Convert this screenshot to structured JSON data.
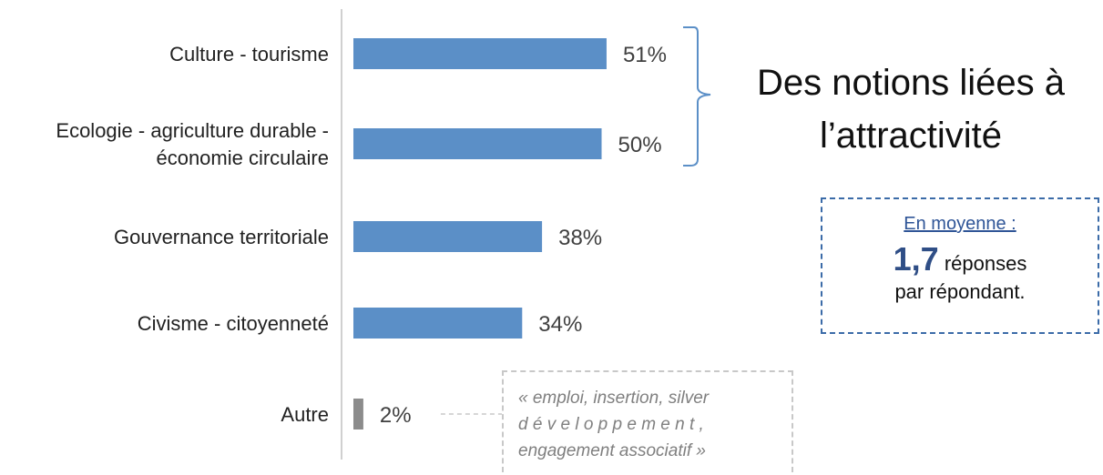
{
  "chart_data": {
    "type": "bar",
    "orientation": "horizontal",
    "categories": [
      [
        "Culture - tourisme"
      ],
      [
        "Ecologie - agriculture durable -",
        "économie circulaire"
      ],
      [
        "Gouvernance territoriale"
      ],
      [
        "Civisme - citoyenneté"
      ],
      [
        "Autre"
      ]
    ],
    "values": [
      51,
      50,
      38,
      34,
      2
    ],
    "value_labels": [
      "51%",
      "50%",
      "38%",
      "34%",
      "2%"
    ],
    "bar_colors": [
      "#5b8fc7",
      "#5b8fc7",
      "#5b8fc7",
      "#5b8fc7",
      "#8c8c8c"
    ],
    "xlim": [
      0,
      100
    ],
    "grid": false,
    "title": "",
    "xlabel": "",
    "ylabel": ""
  },
  "headline": {
    "line1": "Des notions liées à",
    "line2": "l’attractivité"
  },
  "average_box": {
    "title": "En moyenne :",
    "number": "1,7",
    "suffix": "réponses",
    "line3": "par répondant."
  },
  "quote": {
    "line1": "« emploi, insertion, silver",
    "line2": "d é v e l o p p e m e n t ,",
    "line3": "engagement associatif »"
  },
  "colors": {
    "bar": "#5b8fc7",
    "bar_other": "#8c8c8c",
    "bracket": "#5b8fc7",
    "box_border": "#3b6ba8",
    "quote_border": "#c8c8c8"
  }
}
